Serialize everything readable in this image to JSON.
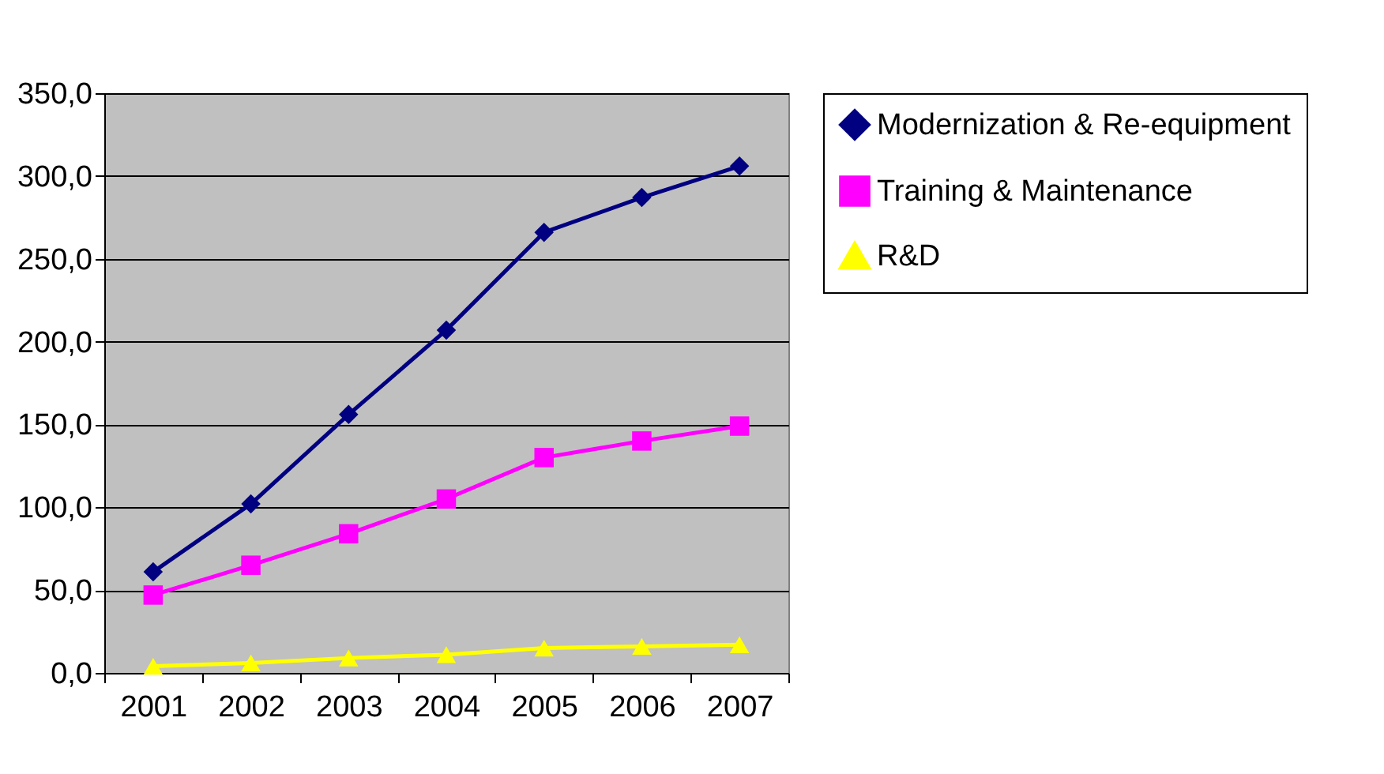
{
  "chart_data": {
    "type": "line",
    "categories": [
      "2001",
      "2002",
      "2003",
      "2004",
      "2005",
      "2006",
      "2007"
    ],
    "series": [
      {
        "name": "Modernization & Re-equipment",
        "color": "#000080",
        "marker": "diamond",
        "values": [
          61,
          102,
          156,
          207,
          266,
          287,
          306
        ]
      },
      {
        "name": "Training & Maintenance",
        "color": "#ff00ff",
        "marker": "square",
        "values": [
          47,
          65,
          84,
          105,
          130,
          140,
          149
        ]
      },
      {
        "name": "R&D",
        "color": "#ffff00",
        "marker": "triangle",
        "values": [
          4,
          6,
          9,
          11,
          15,
          16,
          17
        ]
      }
    ],
    "ylim": [
      0,
      350
    ],
    "yticks": [
      {
        "value": 0,
        "label": "0,0"
      },
      {
        "value": 50,
        "label": "50,0"
      },
      {
        "value": 100,
        "label": "100,0"
      },
      {
        "value": 150,
        "label": "150,0"
      },
      {
        "value": 200,
        "label": "200,0"
      },
      {
        "value": 250,
        "label": "250,0"
      },
      {
        "value": 300,
        "label": "300,0"
      },
      {
        "value": 350,
        "label": "350,0"
      }
    ],
    "grid": "y",
    "legend": "right"
  }
}
